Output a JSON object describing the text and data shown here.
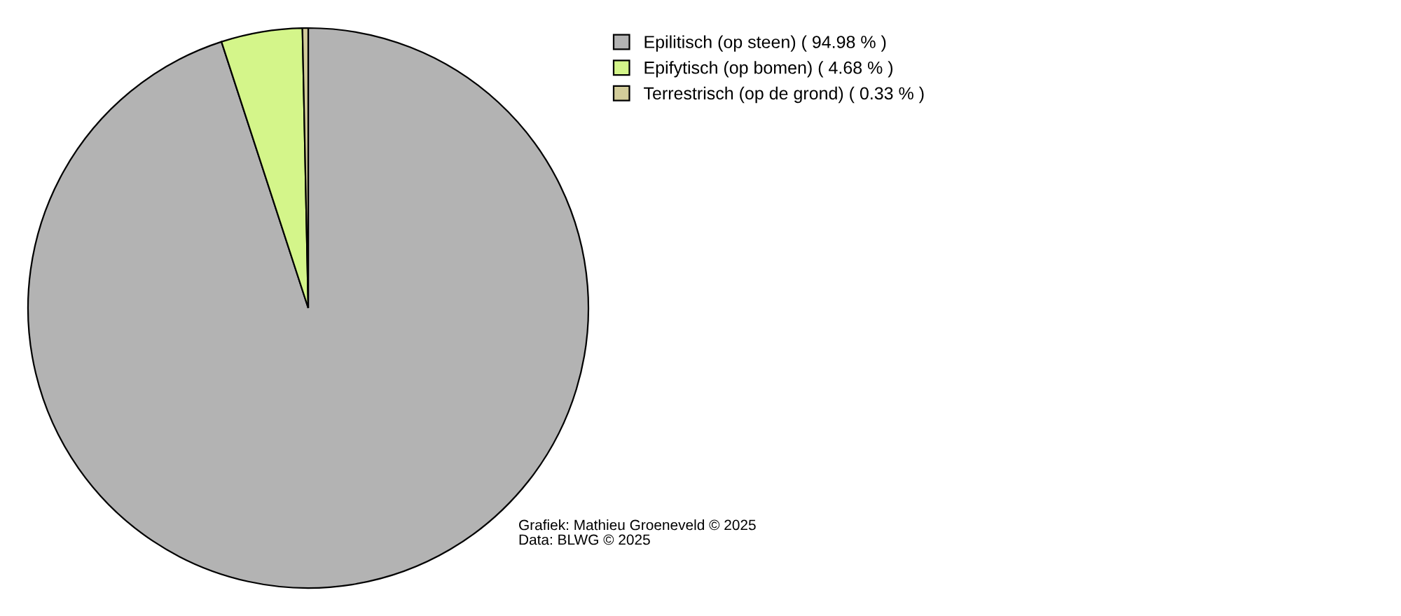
{
  "chart_data": {
    "type": "pie",
    "categories": [
      "Epilitisch (op steen) ( 94.98 % )",
      "Epifytisch (op bomen) ( 4.68 % )",
      "Terrestrisch (op de grond) ( 0.33 % )"
    ],
    "values": [
      94.98,
      4.68,
      0.33
    ],
    "colors": [
      "#b3b3b3",
      "#d4f58a",
      "#d2cc9a"
    ],
    "legend": "top right",
    "annotations": [
      "Grafiek: Mathieu Groeneveld © 2025",
      "Data: BLWG © 2025"
    ]
  }
}
